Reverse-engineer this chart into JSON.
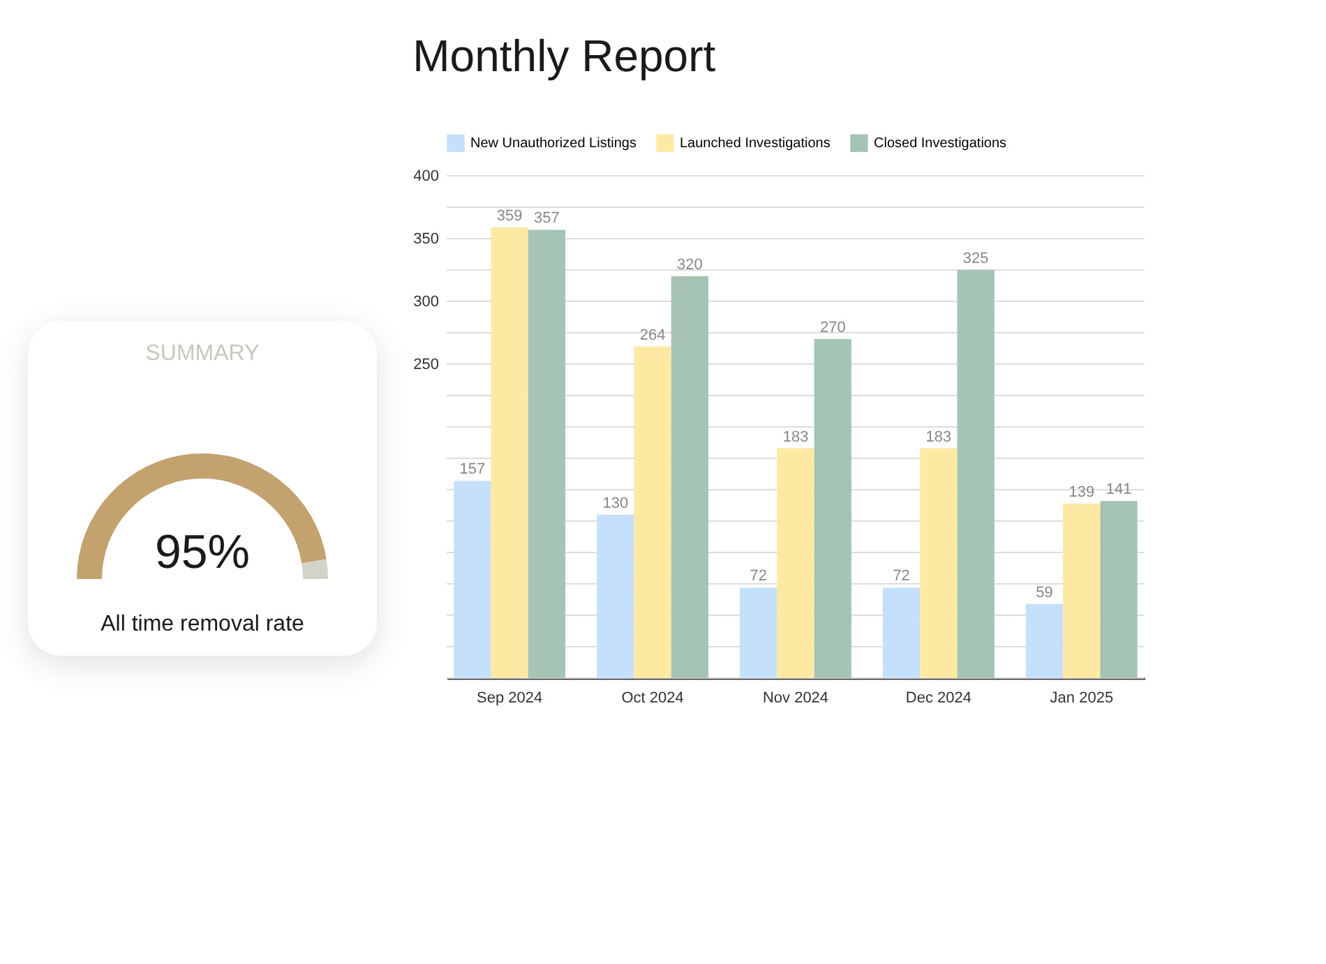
{
  "chart_data": [
    {
      "type": "bar",
      "title": "Monthly Report",
      "categories": [
        "Sep 2024",
        "Oct 2024",
        "Nov 2024",
        "Dec 2024",
        "Jan 2025"
      ],
      "series": [
        {
          "name": "New Unauthorized Listings",
          "color": "#c5e0fa",
          "values": [
            157,
            130,
            72,
            72,
            59
          ]
        },
        {
          "name": "Launched Investigations",
          "color": "#fde9a2",
          "values": [
            359,
            264,
            183,
            183,
            139
          ]
        },
        {
          "name": "Closed Investigations",
          "color": "#a6c4b4",
          "values": [
            357,
            320,
            270,
            325,
            141
          ]
        }
      ],
      "ylim": [
        0,
        400
      ],
      "yticks": [
        {
          "value": 0,
          "label": null
        },
        {
          "value": 25,
          "label": null
        },
        {
          "value": 50,
          "label": null
        },
        {
          "value": 75,
          "label": null
        },
        {
          "value": 100,
          "label": null
        },
        {
          "value": 125,
          "label": null
        },
        {
          "value": 150,
          "label": null
        },
        {
          "value": 175,
          "label": null
        },
        {
          "value": 200,
          "label": null
        },
        {
          "value": 225,
          "label": null
        },
        250,
        {
          "value": 275,
          "label": null
        },
        300,
        {
          "value": 325,
          "label": null
        },
        350,
        {
          "value": 375,
          "label": null
        },
        400
      ],
      "grid": "y",
      "legend": "top left",
      "data_labels": true
    },
    {
      "type": "donut",
      "title": "SUMMARY",
      "categories": [
        null,
        null
      ],
      "values": [
        95,
        5
      ],
      "colors": [
        "#c4a26e",
        "#d3d3c8"
      ],
      "annotations": [
        "95%",
        "All time removal rate"
      ]
    }
  ]
}
